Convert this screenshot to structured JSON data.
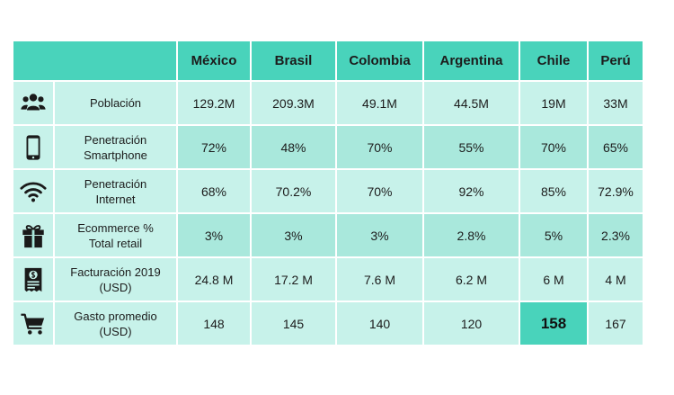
{
  "columns": [
    "México",
    "Brasil",
    "Colombia",
    "Argentina",
    "Chile",
    "Perú"
  ],
  "rows": [
    {
      "icon": "people-icon",
      "label_line1": "Población",
      "label_line2": "",
      "values": [
        "129.2M",
        "209.3M",
        "49.1M",
        "44.5M",
        "19M",
        "33M"
      ]
    },
    {
      "icon": "smartphone-icon",
      "label_line1": "Penetración",
      "label_line2": "Smartphone",
      "values": [
        "72%",
        "48%",
        "70%",
        "55%",
        "70%",
        "65%"
      ]
    },
    {
      "icon": "wifi-icon",
      "label_line1": "Penetración",
      "label_line2": "Internet",
      "values": [
        "68%",
        "70.2%",
        "70%",
        "92%",
        "85%",
        "72.9%"
      ]
    },
    {
      "icon": "gift-icon",
      "label_line1": "Ecommerce %",
      "label_line2": "Total retail",
      "values": [
        "3%",
        "3%",
        "3%",
        "2.8%",
        "5%",
        "2.3%"
      ]
    },
    {
      "icon": "invoice-icon",
      "label_line1": "Facturación 2019",
      "label_line2": "(USD)",
      "values": [
        "24.8 M",
        "17.2 M",
        "7.6 M",
        "6.2 M",
        "6 M",
        "4 M"
      ]
    },
    {
      "icon": "shopping-cart-icon",
      "label_line1": "Gasto promedio",
      "label_line2": "(USD)",
      "values": [
        "148",
        "145",
        "140",
        "120",
        "158",
        "167"
      ]
    }
  ],
  "highlight": {
    "row": 5,
    "column": 4
  },
  "colors": {
    "header": "#49d3bb",
    "row_light": "#c7f2ea",
    "row_dark": "#a9e8dc",
    "highlight": "#49d3bb"
  }
}
